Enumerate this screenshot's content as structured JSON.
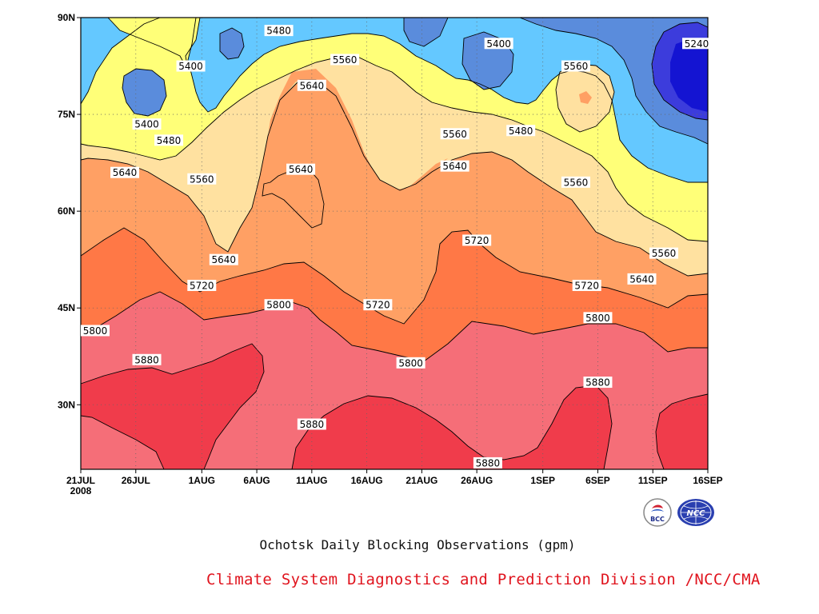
{
  "chart_data": {
    "type": "heatmap",
    "title": "Ochotsk Daily Blocking Observations (gpm)",
    "xlabel": "",
    "ylabel": "",
    "x_tick_labels": [
      "21JUL\n2008",
      "26JUL",
      "1AUG",
      "6AUG",
      "11AUG",
      "16AUG",
      "21AUG",
      "26AUG",
      "1SEP",
      "6SEP",
      "11SEP",
      "16SEP"
    ],
    "y_tick_labels": [
      "30N",
      "45N",
      "60N",
      "75N",
      "90N"
    ],
    "y_ticks": [
      30,
      45,
      60,
      75,
      90
    ],
    "ylim": [
      20,
      90
    ],
    "xlim": [
      "2008-07-21",
      "2008-09-16"
    ],
    "contour_levels": [
      5240,
      5320,
      5400,
      5480,
      5560,
      5640,
      5720,
      5800,
      5880
    ],
    "contour_labels": [
      {
        "value": "5480",
        "date": "2008-08-08",
        "lat": 88
      },
      {
        "value": "5400",
        "date": "2008-07-31",
        "lat": 82.5
      },
      {
        "value": "5400",
        "date": "2008-08-28",
        "lat": 86
      },
      {
        "value": "5560",
        "date": "2008-08-14",
        "lat": 83.5
      },
      {
        "value": "5640",
        "date": "2008-08-11",
        "lat": 79.5
      },
      {
        "value": "5560",
        "date": "2008-09-04",
        "lat": 82.5
      },
      {
        "value": "5240",
        "date": "2008-09-16",
        "lat": 86
      },
      {
        "value": "5400",
        "date": "2008-07-27",
        "lat": 73.5
      },
      {
        "value": "5480",
        "date": "2008-07-29",
        "lat": 71
      },
      {
        "value": "5560",
        "date": "2008-08-24",
        "lat": 72
      },
      {
        "value": "5480",
        "date": "2008-08-30",
        "lat": 72.5
      },
      {
        "value": "5640",
        "date": "2008-07-25",
        "lat": 66
      },
      {
        "value": "5560",
        "date": "2008-08-01",
        "lat": 65
      },
      {
        "value": "5640",
        "date": "2008-08-10",
        "lat": 66.5
      },
      {
        "value": "5640",
        "date": "2008-08-24",
        "lat": 67
      },
      {
        "value": "5560",
        "date": "2008-09-04",
        "lat": 64.5
      },
      {
        "value": "5720",
        "date": "2008-08-26",
        "lat": 55.5
      },
      {
        "value": "5560",
        "date": "2008-09-12",
        "lat": 53.5
      },
      {
        "value": "5640",
        "date": "2008-08-03",
        "lat": 52.5
      },
      {
        "value": "5640",
        "date": "2008-09-10",
        "lat": 49.5
      },
      {
        "value": "5720",
        "date": "2008-08-01",
        "lat": 48.5
      },
      {
        "value": "5720",
        "date": "2008-09-05",
        "lat": 48.5
      },
      {
        "value": "5800",
        "date": "2008-08-08",
        "lat": 45.5
      },
      {
        "value": "5720",
        "date": "2008-08-17",
        "lat": 45.5
      },
      {
        "value": "5800",
        "date": "2008-07-21",
        "lat": 41.5
      },
      {
        "value": "5800",
        "date": "2008-09-06",
        "lat": 43.5
      },
      {
        "value": "5880",
        "date": "2008-07-27",
        "lat": 37
      },
      {
        "value": "5800",
        "date": "2008-08-20",
        "lat": 36.5
      },
      {
        "value": "5880",
        "date": "2008-09-06",
        "lat": 33.5
      },
      {
        "value": "5880",
        "date": "2008-08-11",
        "lat": 27
      },
      {
        "value": "5880",
        "date": "2008-08-27",
        "lat": 21
      }
    ],
    "fill_colors": {
      "5240_and_below": "#1414d2",
      "5240_5320": "#3c3cdc",
      "5320_5400": "#5a8cdc",
      "5400_5480": "#64c8ff",
      "5480_5560": "#ffff78",
      "5560_5640": "#ffe1a0",
      "5640_5720": "#ffa064",
      "5720_5800": "#ff7846",
      "5800_5880": "#f56e78",
      "5880_and_above": "#f03c4b"
    },
    "grid": true,
    "grid_style": "dotted"
  },
  "caption": {
    "title": "Ochotsk Daily Blocking Observations (gpm)",
    "credit": "Climate System Diagnostics and Prediction Division /NCC/CMA"
  },
  "logos": {
    "bcc": {
      "text": "BCC"
    },
    "ncc": {
      "text": "NCC"
    }
  }
}
